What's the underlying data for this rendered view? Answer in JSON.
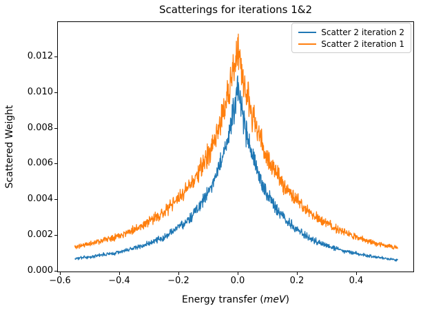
{
  "figure": {
    "title": "Scatterings for iterations 1&2",
    "background_color": "#ffffff"
  },
  "axes": {
    "ylabel": "Scattered Weight",
    "xlabel_prefix": "Energy transfer (",
    "xlabel_italic": "meV",
    "xlabel_suffix": ")"
  },
  "legend": {
    "position": "upper right",
    "items": [
      {
        "label": "Scatter 2 iteration 2",
        "color": "#1f77b4"
      },
      {
        "label": "Scatter 2 iteration 1",
        "color": "#ff7f0e"
      }
    ]
  },
  "chart_data": {
    "type": "line",
    "title": "Scatterings for iterations 1&2",
    "xlabel": "Energy transfer (meV)",
    "ylabel": "Scattered Weight",
    "xlim": [
      -0.607,
      0.593
    ],
    "ylim": [
      -4e-05,
      0.01392
    ],
    "grid": false,
    "legend_position": "upper right",
    "xticks": {
      "values": [
        -0.6,
        -0.4,
        -0.2,
        0.0,
        0.2,
        0.4
      ],
      "labels": [
        "−0.6",
        "−0.4",
        "−0.2",
        "0.0",
        "0.2",
        "0.4"
      ]
    },
    "yticks": {
      "values": [
        0.0,
        0.002,
        0.004,
        0.006,
        0.008,
        0.01,
        0.012
      ],
      "labels": [
        "0.000",
        "0.002",
        "0.004",
        "0.006",
        "0.008",
        "0.010",
        "0.012"
      ]
    },
    "x_sample": [
      -0.55,
      -0.5,
      -0.4,
      -0.3,
      -0.2,
      -0.15,
      -0.1,
      -0.05,
      0.0,
      0.05,
      0.1,
      0.15,
      0.2,
      0.3,
      0.4,
      0.5,
      0.55
    ],
    "series": [
      {
        "name": "Scatter 2 iteration 2",
        "color": "#1f77b4",
        "values": [
          0.0007,
          0.00078,
          0.00106,
          0.00153,
          0.00242,
          0.00318,
          0.00439,
          0.00647,
          0.0105,
          0.00639,
          0.00429,
          0.00306,
          0.0023,
          0.00143,
          0.00096,
          0.0007,
          0.00062
        ],
        "model": {
          "peak": 0.0105,
          "center": 0,
          "width": 0.18,
          "power": 2,
          "tilt": -0.12,
          "noise_frac": 0.12,
          "noise_abs": 3e-05,
          "x_range": [
            -0.55,
            0.54
          ],
          "points": 1000,
          "seed": 3
        }
      },
      {
        "name": "Scatter 2 iteration 1",
        "color": "#ff7f0e",
        "values": [
          0.00136,
          0.00154,
          0.00203,
          0.00279,
          0.00409,
          0.00512,
          0.00661,
          0.00887,
          0.0123,
          0.00876,
          0.00645,
          0.00498,
          0.00394,
          0.00264,
          0.00189,
          0.00141,
          0.00128
        ],
        "model": {
          "peak": 0.0123,
          "center": 0,
          "width": 0.264,
          "power": 2,
          "tilt": -0.06,
          "noise_frac": 0.12,
          "noise_abs": 3e-05,
          "x_range": [
            -0.55,
            0.54
          ],
          "points": 1000,
          "seed": 11
        }
      }
    ]
  }
}
